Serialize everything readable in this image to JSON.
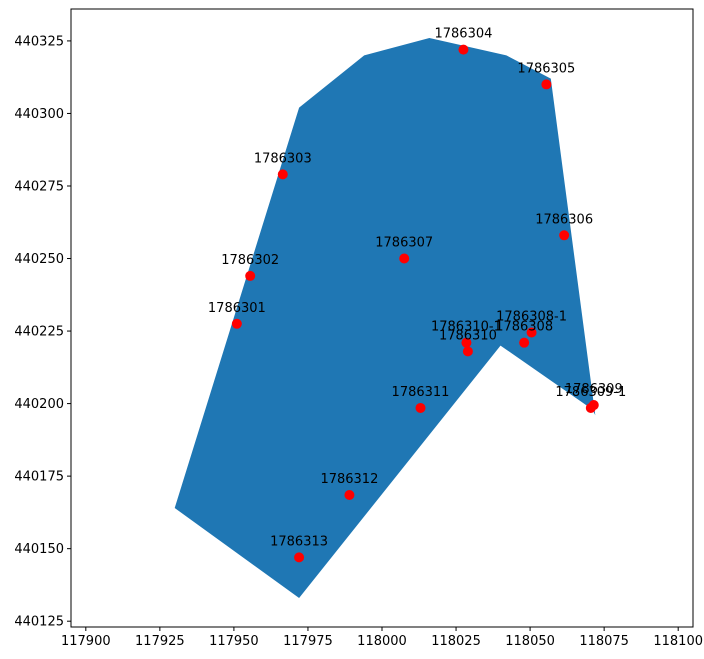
{
  "chart_data": {
    "type": "scatter",
    "title": "",
    "xlabel": "",
    "ylabel": "",
    "xlim": [
      117895,
      118105
    ],
    "ylim": [
      440123,
      440336
    ],
    "xticks": [
      117900,
      117925,
      117950,
      117975,
      118000,
      118025,
      118050,
      118075,
      118100
    ],
    "yticks": [
      440125,
      440150,
      440175,
      440200,
      440225,
      440250,
      440275,
      440300,
      440325
    ],
    "grid": false,
    "polygon": {
      "color": "#1f77b4",
      "x": [
        117930,
        117972,
        118040,
        118071,
        118072,
        118057,
        118042,
        118016,
        117994,
        117972
      ],
      "y": [
        440164,
        440133,
        440220,
        440198,
        440196,
        440312,
        440320,
        440326,
        440320,
        440302
      ]
    },
    "points": {
      "color": "#ff0000",
      "items": [
        {
          "label": "1786304",
          "x": 118027.5,
          "y": 440322
        },
        {
          "label": "1786305",
          "x": 118055.5,
          "y": 440310
        },
        {
          "label": "1786303",
          "x": 117966.5,
          "y": 440279
        },
        {
          "label": "1786306",
          "x": 118061.5,
          "y": 440258
        },
        {
          "label": "1786307",
          "x": 118007.5,
          "y": 440250
        },
        {
          "label": "1786302",
          "x": 117955.5,
          "y": 440244
        },
        {
          "label": "1786301",
          "x": 117951,
          "y": 440227.5
        },
        {
          "label": "1786308-1",
          "x": 118050.5,
          "y": 440224.5
        },
        {
          "label": "1786308",
          "x": 118048,
          "y": 440221
        },
        {
          "label": "1786310-1",
          "x": 118028.5,
          "y": 440221
        },
        {
          "label": "1786310",
          "x": 118029,
          "y": 440218
        },
        {
          "label": "1786309",
          "x": 118071.5,
          "y": 440199.5
        },
        {
          "label": "1786309-1",
          "x": 118070.5,
          "y": 440198.5
        },
        {
          "label": "1786311",
          "x": 118013,
          "y": 440198.5
        },
        {
          "label": "1786312",
          "x": 117989,
          "y": 440168.5
        },
        {
          "label": "1786313",
          "x": 117972,
          "y": 440147
        }
      ]
    }
  }
}
